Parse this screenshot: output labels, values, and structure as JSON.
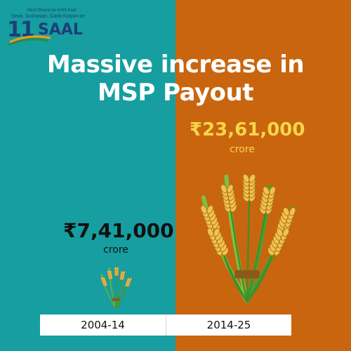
{
  "logo": {
    "tagline_top": "Viksit Bharat ka Amrit Kaal",
    "tagline": "Seva, Sushasan, Garib Kalyan ke",
    "number": "11",
    "word": "SAAL"
  },
  "chart_data": {
    "type": "bar",
    "title": "Massive increase in MSP Payout",
    "title_lines": [
      "Massive increase in",
      "MSP Payout"
    ],
    "categories": [
      "2004-14",
      "2014-25"
    ],
    "values": [
      741000,
      2361000
    ],
    "value_labels": [
      "₹7,41,000",
      "₹23,61,000"
    ],
    "unit": "crore",
    "xlabel": "",
    "ylabel": "",
    "grid": false,
    "legend": "none"
  },
  "colors": {
    "left_panel": "#169ea0",
    "right_panel": "#c9650f",
    "highlight_value": "#f6d64a",
    "title": "#ffffff",
    "logo": "#1b3f7a"
  }
}
